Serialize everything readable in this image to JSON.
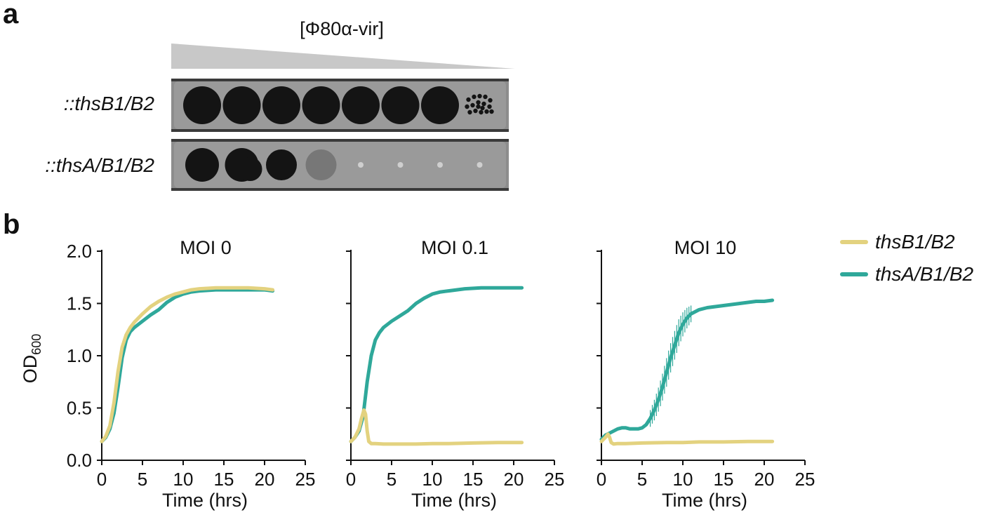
{
  "panel_a": {
    "label": "a",
    "gradient_label": "[Φ80α-vir]",
    "strains": [
      {
        "label": "::thsB1/B2",
        "spots": [
          "full",
          "full",
          "full",
          "full",
          "full",
          "full",
          "full",
          "plaques"
        ]
      },
      {
        "label": "::thsA/B1/B2",
        "spots": [
          "full",
          "full",
          "full",
          "faint",
          "trace",
          "trace",
          "trace",
          "trace"
        ]
      }
    ]
  },
  "panel_b": {
    "label": "b",
    "legend": [
      {
        "label": "thsB1/B2",
        "color": "#e3d27f"
      },
      {
        "label": "thsA/B1/B2",
        "color": "#2fa89a"
      }
    ]
  },
  "chart_data": [
    {
      "type": "line",
      "title": "MOI 0",
      "xlabel": "Time (hrs)",
      "ylabel": "OD",
      "ylabel_sub": "600",
      "xlim": [
        0,
        25
      ],
      "ylim": [
        0,
        2.0
      ],
      "xticks": [
        "0",
        "5",
        "10",
        "15",
        "20",
        "25"
      ],
      "yticks": [
        "0.0",
        "0.5",
        "1.0",
        "1.5",
        "2.0"
      ],
      "series": [
        {
          "name": "thsA/B1/B2",
          "color": "#2fa89a",
          "x": [
            0,
            0.5,
            1,
            1.5,
            2,
            2.5,
            3,
            3.5,
            4,
            5,
            6,
            7,
            8,
            9,
            10,
            11,
            12,
            14,
            16,
            18,
            20,
            21
          ],
          "y": [
            0.18,
            0.22,
            0.3,
            0.45,
            0.7,
            0.98,
            1.15,
            1.23,
            1.27,
            1.33,
            1.39,
            1.44,
            1.51,
            1.56,
            1.59,
            1.61,
            1.62,
            1.63,
            1.63,
            1.63,
            1.63,
            1.62
          ]
        },
        {
          "name": "thsB1/B2",
          "color": "#e3d27f",
          "x": [
            0,
            0.5,
            1,
            1.5,
            2,
            2.5,
            3,
            3.5,
            4,
            5,
            6,
            7,
            8,
            9,
            10,
            11,
            12,
            14,
            16,
            18,
            20,
            21
          ],
          "y": [
            0.18,
            0.23,
            0.33,
            0.55,
            0.85,
            1.08,
            1.2,
            1.27,
            1.32,
            1.4,
            1.47,
            1.52,
            1.56,
            1.59,
            1.61,
            1.63,
            1.64,
            1.65,
            1.65,
            1.65,
            1.64,
            1.63
          ]
        }
      ]
    },
    {
      "type": "line",
      "title": "MOI 0.1",
      "xlabel": "Time (hrs)",
      "xlim": [
        0,
        25
      ],
      "ylim": [
        0,
        2.0
      ],
      "xticks": [
        "0",
        "5",
        "10",
        "15",
        "20",
        "25"
      ],
      "series": [
        {
          "name": "thsA/B1/B2",
          "color": "#2fa89a",
          "x": [
            0,
            0.5,
            1,
            1.5,
            2,
            2.5,
            3,
            3.5,
            4,
            5,
            6,
            7,
            8,
            9,
            10,
            11,
            12,
            14,
            16,
            18,
            20,
            21
          ],
          "y": [
            0.18,
            0.22,
            0.28,
            0.42,
            0.75,
            1.0,
            1.15,
            1.22,
            1.27,
            1.33,
            1.38,
            1.43,
            1.5,
            1.55,
            1.59,
            1.61,
            1.62,
            1.64,
            1.65,
            1.65,
            1.65,
            1.65
          ]
        },
        {
          "name": "thsB1/B2",
          "color": "#e3d27f",
          "x": [
            0,
            0.5,
            1,
            1.3,
            1.6,
            1.8,
            2.0,
            2.2,
            2.5,
            3,
            4,
            6,
            8,
            10,
            12,
            15,
            18,
            21
          ],
          "y": [
            0.18,
            0.22,
            0.3,
            0.4,
            0.48,
            0.44,
            0.28,
            0.18,
            0.16,
            0.16,
            0.155,
            0.155,
            0.155,
            0.16,
            0.16,
            0.165,
            0.17,
            0.17
          ]
        }
      ]
    },
    {
      "type": "line",
      "title": "MOI 10",
      "xlabel": "Time (hrs)",
      "xlim": [
        0,
        25
      ],
      "ylim": [
        0,
        2.0
      ],
      "xticks": [
        "0",
        "5",
        "10",
        "15",
        "20",
        "25"
      ],
      "series": [
        {
          "name": "thsA/B1/B2",
          "color": "#2fa89a",
          "x": [
            0,
            0.5,
            1,
            1.5,
            2,
            2.5,
            3,
            3.5,
            4,
            4.5,
            5,
            5.5,
            6,
            6.5,
            7,
            7.5,
            8,
            8.5,
            9,
            9.5,
            10,
            10.5,
            11,
            11.5,
            12,
            13,
            14,
            15,
            16,
            17,
            18,
            19,
            20,
            21
          ],
          "y": [
            0.2,
            0.24,
            0.26,
            0.28,
            0.3,
            0.31,
            0.31,
            0.3,
            0.3,
            0.3,
            0.31,
            0.34,
            0.4,
            0.48,
            0.58,
            0.7,
            0.84,
            0.98,
            1.1,
            1.22,
            1.3,
            1.36,
            1.4,
            1.42,
            1.44,
            1.46,
            1.47,
            1.48,
            1.49,
            1.5,
            1.51,
            1.52,
            1.52,
            1.53
          ]
        },
        {
          "name": "thsB1/B2",
          "color": "#e3d27f",
          "x": [
            0,
            0.5,
            0.8,
            1.0,
            1.2,
            1.5,
            2,
            3,
            5,
            8,
            10,
            12,
            15,
            18,
            21
          ],
          "y": [
            0.18,
            0.22,
            0.25,
            0.22,
            0.17,
            0.155,
            0.16,
            0.16,
            0.165,
            0.17,
            0.17,
            0.175,
            0.175,
            0.18,
            0.18
          ]
        }
      ]
    }
  ]
}
